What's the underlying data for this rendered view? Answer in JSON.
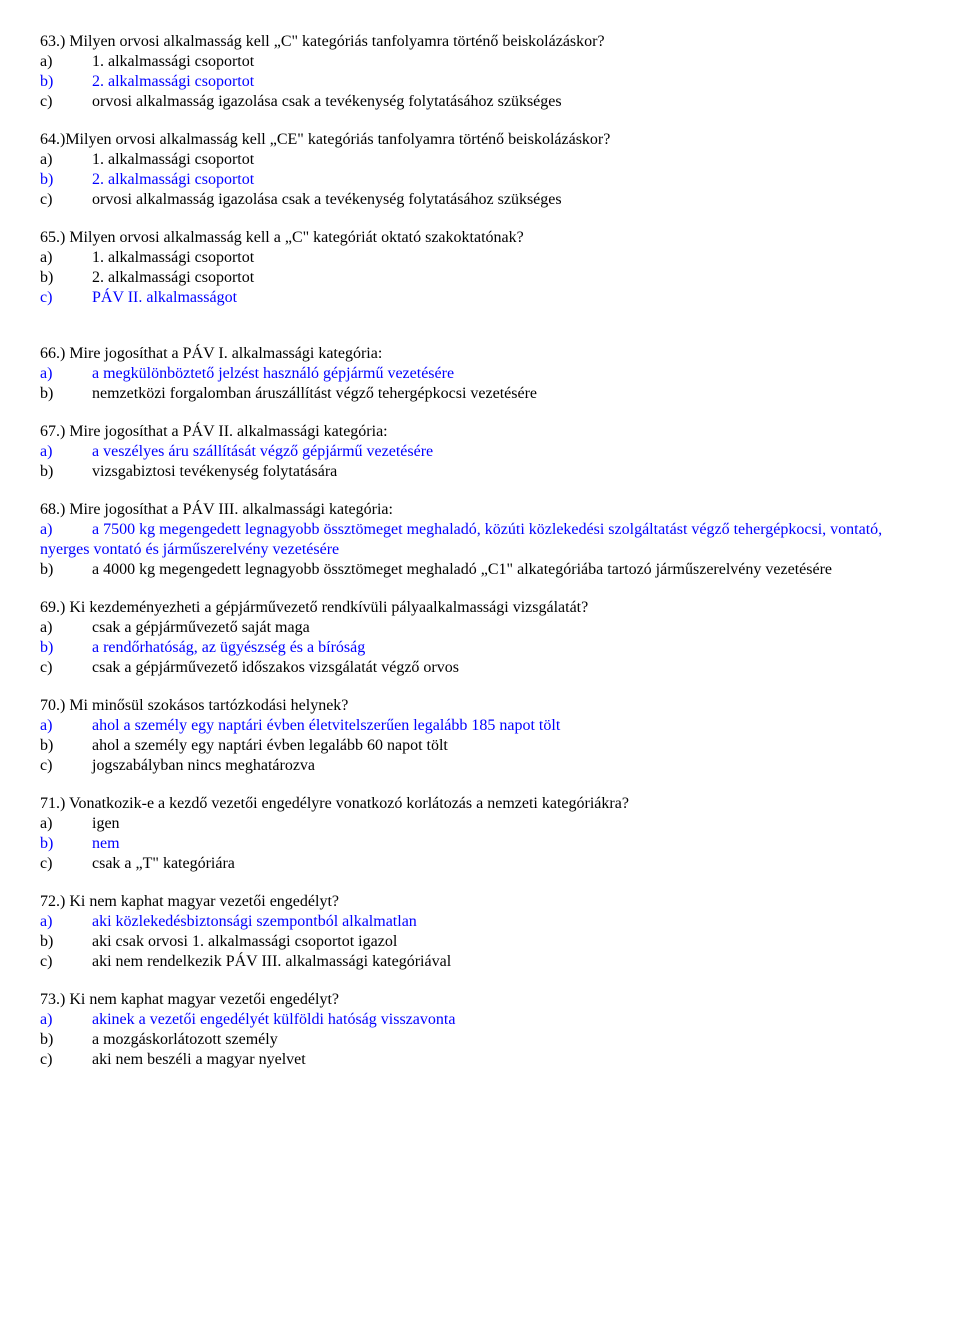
{
  "colors": {
    "text": "#000000",
    "correct": "#0000ff",
    "background": "#ffffff"
  },
  "typography": {
    "font_family": "Times New Roman",
    "font_size_pt": 12,
    "line_height": 1.25
  },
  "questions": [
    {
      "q": "63.) Milyen orvosi alkalmasság kell „C\" kategóriás tanfolyamra történő beiskolázáskor?",
      "opts": [
        {
          "l": "a)",
          "t": "1. alkalmassági csoportot",
          "c": false
        },
        {
          "l": "b)",
          "t": "2. alkalmassági csoportot",
          "c": true
        },
        {
          "l": "c)",
          "t": "orvosi alkalmasság igazolása csak a tevékenység folytatásához szükséges",
          "c": false
        }
      ]
    },
    {
      "q": "64.)Milyen orvosi alkalmasság kell „CE\" kategóriás tanfolyamra történő beiskolázáskor?",
      "opts": [
        {
          "l": "a)",
          "t": "1. alkalmassági csoportot",
          "c": false
        },
        {
          "l": "b)",
          "t": "2. alkalmassági csoportot",
          "c": true
        },
        {
          "l": "c)",
          "t": "orvosi alkalmasság igazolása csak a tevékenység folytatásához szükséges",
          "c": false
        }
      ]
    },
    {
      "q": "65.) Milyen orvosi alkalmasság kell a „C\" kategóriát oktató szakoktatónak?",
      "opts": [
        {
          "l": "a)",
          "t": "1. alkalmassági csoportot",
          "c": false
        },
        {
          "l": "b)",
          "t": "2. alkalmassági csoportot",
          "c": false
        },
        {
          "l": "c)",
          "t": "PÁV II. alkalmasságot",
          "c": true
        }
      ],
      "gap_after": true
    },
    {
      "q": "66.) Mire jogosíthat a PÁV I. alkalmassági kategória:",
      "opts": [
        {
          "l": "a)",
          "t": "a megkülönböztető jelzést használó gépjármű vezetésére",
          "c": true
        },
        {
          "l": "b)",
          "t": "nemzetközi forgalomban áruszállítást végző tehergépkocsi vezetésére",
          "c": false
        }
      ]
    },
    {
      "q": "67.) Mire jogosíthat a PÁV II. alkalmassági kategória:",
      "opts": [
        {
          "l": "a)",
          "t": "a veszélyes áru szállítását végző gépjármű vezetésére",
          "c": true
        },
        {
          "l": "b)",
          "t": "vizsgabiztosi tevékenység folytatására",
          "c": false
        }
      ]
    },
    {
      "q": "68.) Mire jogosíthat a PÁV III. alkalmassági kategória:",
      "opts": [
        {
          "l": "a)",
          "t": "a 7500 kg megengedett legnagyobb össztömeget meghaladó, közúti közlekedési szolgáltatást végző tehergépkocsi, vontató, nyerges vontató és járműszerelvény vezetésére",
          "c": true,
          "wrap": true
        },
        {
          "l": "b)",
          "t": "a 4000 kg megengedett legnagyobb össztömeget meghaladó „C1\" alkategóriába tartozó járműszerelvény vezetésére",
          "c": false,
          "wrap": true
        }
      ]
    },
    {
      "q": "69.) Ki kezdeményezheti a gépjárművezető rendkívüli pályaalkalmassági vizsgálatát?",
      "opts": [
        {
          "l": "a)",
          "t": "csak a gépjárművezető saját maga",
          "c": false
        },
        {
          "l": "b)",
          "t": "a rendőrhatóság, az ügyészség és a bíróság",
          "c": true
        },
        {
          "l": "c)",
          "t": "csak a gépjárművezető időszakos vizsgálatát végző orvos",
          "c": false
        }
      ]
    },
    {
      "q": "70.) Mi minősül szokásos tartózkodási helynek?",
      "opts": [
        {
          "l": "a)",
          "t": "ahol a személy egy naptári évben életvitelszerűen legalább 185 napot tölt",
          "c": true
        },
        {
          "l": "b)",
          "t": "ahol a személy egy naptári évben legalább 60 napot tölt",
          "c": false
        },
        {
          "l": "c)",
          "t": "jogszabályban nincs meghatározva",
          "c": false
        }
      ]
    },
    {
      "q": "71.) Vonatkozik-e a kezdő vezetői engedélyre vonatkozó korlátozás a nemzeti kategóriákra?",
      "opts": [
        {
          "l": "a)",
          "t": "igen",
          "c": false
        },
        {
          "l": "b)",
          "t": "nem",
          "c": true
        },
        {
          "l": "c)",
          "t": "csak a „T\" kategóriára",
          "c": false
        }
      ]
    },
    {
      "q": "72.) Ki nem kaphat magyar vezetői engedélyt?",
      "opts": [
        {
          "l": "a)",
          "t": "aki közlekedésbiztonsági szempontból alkalmatlan",
          "c": true
        },
        {
          "l": "b)",
          "t": "aki csak orvosi 1. alkalmassági csoportot igazol",
          "c": false
        },
        {
          "l": "c)",
          "t": "aki nem rendelkezik PÁV III. alkalmassági kategóriával",
          "c": false
        }
      ]
    },
    {
      "q": "73.) Ki nem kaphat magyar vezetői engedélyt?",
      "opts": [
        {
          "l": "a)",
          "t": "akinek a vezetői engedélyét külföldi hatóság visszavonta",
          "c": true
        },
        {
          "l": "b)",
          "t": "a mozgáskorlátozott személy",
          "c": false
        },
        {
          "l": "c)",
          "t": "aki nem beszéli a magyar nyelvet",
          "c": false
        }
      ]
    }
  ]
}
